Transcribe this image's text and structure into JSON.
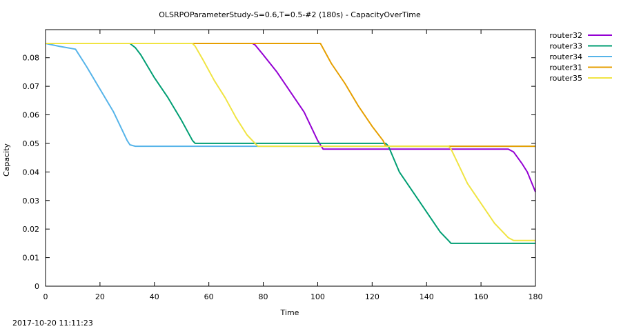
{
  "timestamp": "2017-10-20 11:11:23",
  "chart_data": {
    "type": "line",
    "title": "OLSRPOParameterStudy-S=0.6,T=0.5-#2 (180s) - CapacityOverTime",
    "xlabel": "Time",
    "ylabel": "Capacity",
    "xlim": [
      0,
      180
    ],
    "ylim": [
      0,
      0.088
    ],
    "xticks": [
      0,
      20,
      40,
      60,
      80,
      100,
      120,
      140,
      160,
      180
    ],
    "yticks": [
      0,
      0.01,
      0.02,
      0.03,
      0.04,
      0.05,
      0.06,
      0.07,
      0.08
    ],
    "ytick_labels": [
      "0",
      "0.01",
      "0.02",
      "0.03",
      "0.04",
      "0.05",
      "0.06",
      "0.07",
      "0.08"
    ],
    "grid": false,
    "legend": "outside-top-right",
    "series": [
      {
        "name": "router32",
        "color": "#9400d3",
        "x": [
          0,
          76,
          77,
          80,
          85,
          90,
          95,
          100,
          102,
          170,
          172,
          175,
          177,
          180
        ],
        "y": [
          0.085,
          0.085,
          0.0845,
          0.081,
          0.075,
          0.068,
          0.061,
          0.051,
          0.048,
          0.048,
          0.047,
          0.043,
          0.04,
          0.033
        ]
      },
      {
        "name": "router33",
        "color": "#009e73",
        "x": [
          0,
          31,
          33,
          35,
          40,
          45,
          50,
          54,
          55,
          125,
          126,
          130,
          135,
          140,
          145,
          148,
          149,
          180
        ],
        "y": [
          0.085,
          0.085,
          0.0835,
          0.081,
          0.073,
          0.066,
          0.058,
          0.051,
          0.05,
          0.05,
          0.049,
          0.04,
          0.033,
          0.026,
          0.019,
          0.016,
          0.015,
          0.015
        ]
      },
      {
        "name": "router34",
        "color": "#56b4e9",
        "x": [
          0,
          5,
          11,
          15,
          20,
          25,
          28,
          30,
          31,
          33,
          180
        ],
        "y": [
          0.085,
          0.084,
          0.083,
          0.077,
          0.069,
          0.061,
          0.055,
          0.051,
          0.0495,
          0.049,
          0.049
        ]
      },
      {
        "name": "router31",
        "color": "#e69f00",
        "x": [
          0,
          101,
          105,
          110,
          115,
          120,
          124,
          125,
          180
        ],
        "y": [
          0.085,
          0.085,
          0.078,
          0.071,
          0.063,
          0.056,
          0.051,
          0.049,
          0.049
        ]
      },
      {
        "name": "router35",
        "color": "#f0e442",
        "x": [
          0,
          54,
          55,
          58,
          62,
          66,
          70,
          74,
          77,
          78,
          148,
          149,
          152,
          155,
          160,
          165,
          170,
          172,
          180
        ],
        "y": [
          0.085,
          0.085,
          0.084,
          0.079,
          0.072,
          0.066,
          0.059,
          0.053,
          0.05,
          0.049,
          0.049,
          0.048,
          0.042,
          0.036,
          0.029,
          0.022,
          0.017,
          0.016,
          0.016
        ]
      }
    ]
  }
}
